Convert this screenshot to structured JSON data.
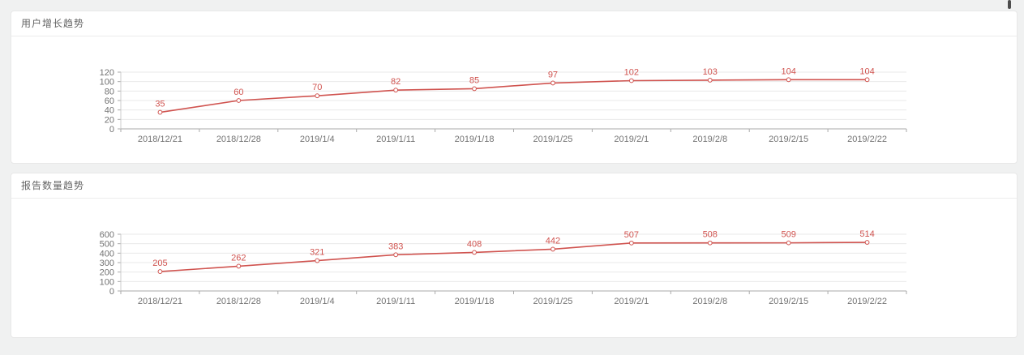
{
  "page": {
    "background": "#f0f1f1"
  },
  "colors": {
    "card_background": "#ffffff",
    "card_border": "#e8e8e8",
    "title_text": "#666666",
    "series_line": "#d0534f",
    "data_label": "#d0534f",
    "marker_fill": "#ffffff",
    "grid_line": "#e9e9e9",
    "x_axis_line": "#aaaaaa",
    "y_axis_line": "#cccccc",
    "tick_label": "#737373",
    "scrollbar": "#4d4d4d"
  },
  "chart_data": [
    {
      "type": "line",
      "title": "用户增长趋势",
      "categories": [
        "2018/12/21",
        "2018/12/28",
        "2019/1/4",
        "2019/1/11",
        "2019/1/18",
        "2019/1/25",
        "2019/2/1",
        "2019/2/8",
        "2019/2/15",
        "2019/2/22"
      ],
      "values": [
        35,
        60,
        70,
        82,
        85,
        97,
        102,
        103,
        104,
        104
      ],
      "xlabel": "",
      "ylabel": "",
      "ylim": [
        0,
        120
      ],
      "ytick_step": 20,
      "grid": true,
      "point_labels": true,
      "legend_position": "none"
    },
    {
      "type": "line",
      "title": "报告数量趋势",
      "categories": [
        "2018/12/21",
        "2018/12/28",
        "2019/1/4",
        "2019/1/11",
        "2019/1/18",
        "2019/1/25",
        "2019/2/1",
        "2019/2/8",
        "2019/2/15",
        "2019/2/22"
      ],
      "values": [
        205,
        262,
        321,
        383,
        408,
        442,
        507,
        508,
        509,
        514
      ],
      "xlabel": "",
      "ylabel": "",
      "ylim": [
        0,
        600
      ],
      "ytick_step": 100,
      "grid": true,
      "point_labels": true,
      "legend_position": "none"
    }
  ]
}
